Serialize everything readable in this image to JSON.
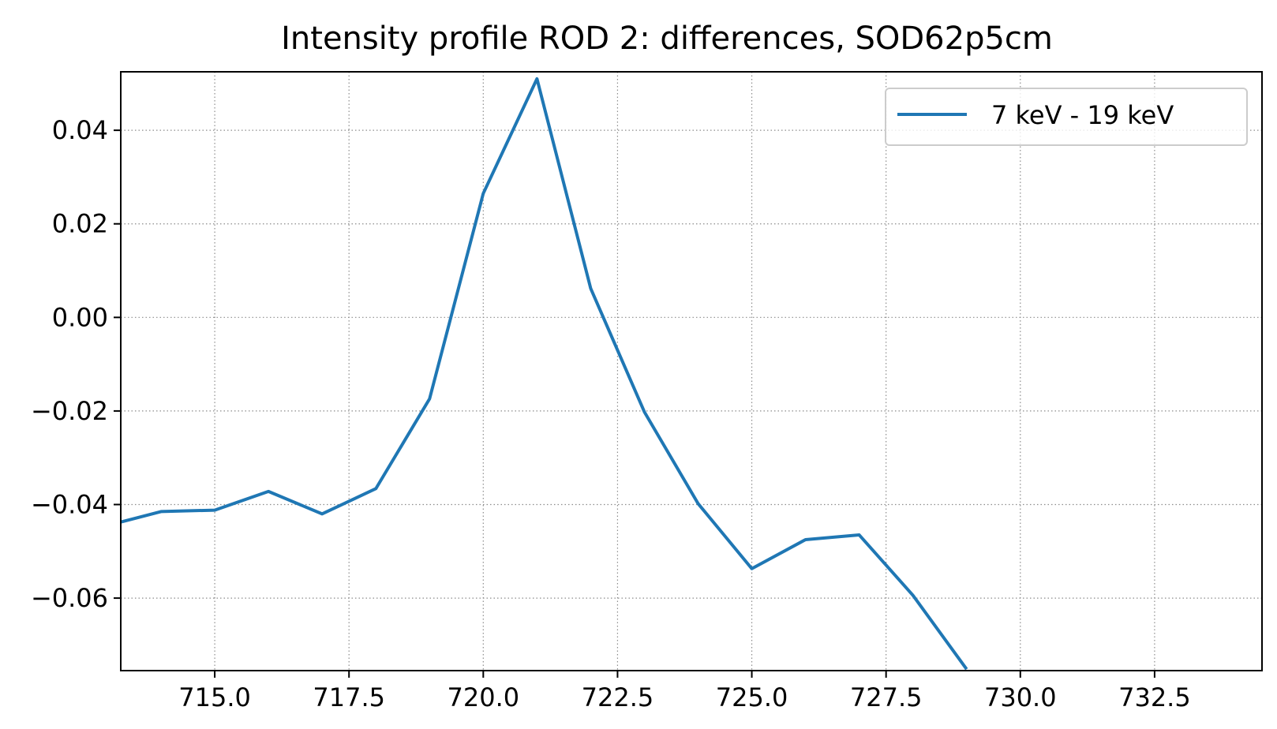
{
  "chart_data": {
    "type": "line",
    "title": "Intensity profile ROD 2: differences, SOD62p5cm",
    "xlabel": "",
    "ylabel": "",
    "xlim": [
      713.25,
      734.5
    ],
    "ylim": [
      -0.0755,
      0.0525
    ],
    "x_ticks": [
      715.0,
      717.5,
      720.0,
      722.5,
      725.0,
      727.5,
      730.0,
      732.5
    ],
    "x_tick_labels": [
      "715.0",
      "717.5",
      "720.0",
      "722.5",
      "725.0",
      "727.5",
      "730.0",
      "732.5"
    ],
    "y_ticks": [
      0.04,
      0.02,
      0.0,
      -0.02,
      -0.04,
      -0.06
    ],
    "y_tick_labels": [
      "0.04",
      "0.02",
      "0.00",
      "−0.02",
      "−0.04",
      "−0.06"
    ],
    "grid": true,
    "legend_position": "top-right",
    "series": [
      {
        "name": "7 keV - 19 keV",
        "color": "#1f77b4",
        "x": [
          713,
          714,
          715,
          716,
          717,
          718,
          719,
          720,
          721,
          722,
          723,
          724,
          725,
          726,
          727,
          728,
          729
        ],
        "y": [
          -0.0445,
          -0.0415,
          -0.0412,
          -0.0372,
          -0.042,
          -0.0366,
          -0.0174,
          0.0265,
          0.051,
          0.0062,
          -0.0202,
          -0.0398,
          -0.0537,
          -0.0475,
          -0.0465,
          -0.0594,
          -0.0752
        ]
      }
    ]
  }
}
